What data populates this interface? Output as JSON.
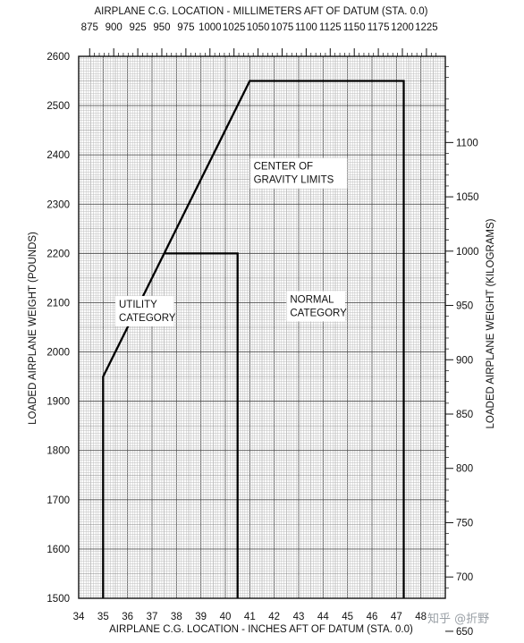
{
  "chart_data": {
    "type": "line",
    "title": "",
    "xlabel": "AIRPLANE C.G. LOCATION - INCHES AFT OF DATUM (STA. 0.0)",
    "ylabel": "LOADED AIRPLANE WEIGHT (POUNDS)",
    "x2label": "AIRPLANE C.G. LOCATION - MILLIMETERS AFT OF DATUM (STA. 0.0)",
    "y2label": "LOADED AIRPLANE WEIGHT (KILOGRAMS)",
    "xlim": [
      34,
      49
    ],
    "ylim": [
      1500,
      2600
    ],
    "x_ticks": [
      "34",
      "35",
      "36",
      "37",
      "38",
      "39",
      "40",
      "41",
      "42",
      "43",
      "44",
      "45",
      "46",
      "47",
      "48"
    ],
    "y_ticks": [
      "1500",
      "1600",
      "1700",
      "1800",
      "1900",
      "2000",
      "2100",
      "2200",
      "2300",
      "2400",
      "2500",
      "2600"
    ],
    "x2_ticks": [
      "875",
      "900",
      "925",
      "950",
      "975",
      "1000",
      "1025",
      "1050",
      "1075",
      "1100",
      "1125",
      "1150",
      "1175",
      "1200",
      "1225"
    ],
    "y2_ticks": [
      "650",
      "700",
      "750",
      "800",
      "850",
      "900",
      "950",
      "1000",
      "1050",
      "1100"
    ],
    "grid": true,
    "series": [
      {
        "name": "NORMAL CATEGORY",
        "x": [
          35.0,
          35.0,
          41.0,
          47.3,
          47.3
        ],
        "y": [
          1500,
          1950,
          2550,
          2550,
          1500
        ]
      },
      {
        "name": "UTILITY CATEGORY",
        "x": [
          37.5,
          40.5,
          40.5
        ],
        "y": [
          2200,
          2200,
          1500
        ]
      }
    ],
    "annotations": [
      {
        "lines": [
          "CENTER OF",
          "GRAVITY LIMITS"
        ],
        "x": 43.0,
        "y": 2370
      },
      {
        "lines": [
          "UTILITY",
          "CATEGORY"
        ],
        "x": 36.7,
        "y": 2090
      },
      {
        "lines": [
          "NORMAL",
          "CATEGORY"
        ],
        "x": 43.7,
        "y": 2100
      }
    ]
  },
  "watermark": "知乎 @折野"
}
